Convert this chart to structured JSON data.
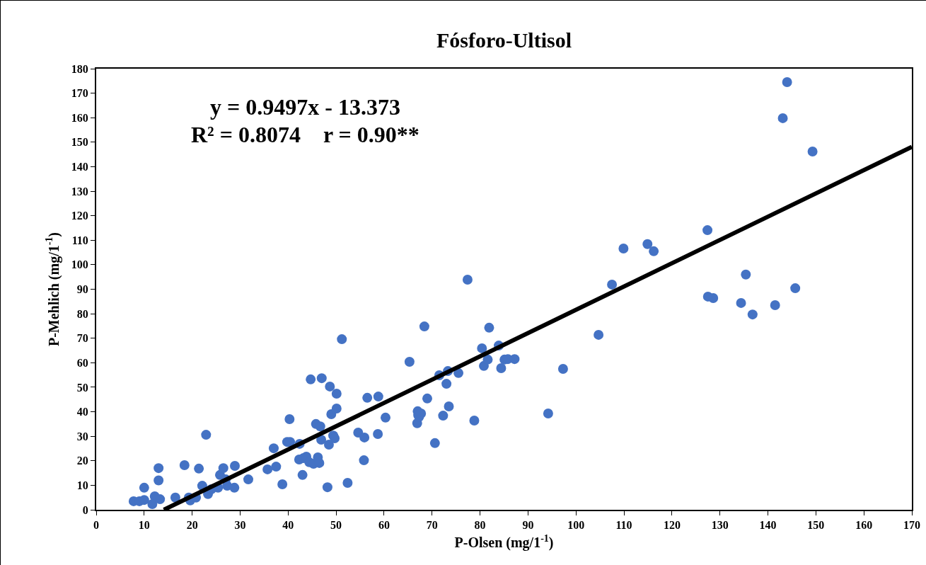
{
  "chart_data": {
    "type": "scatter",
    "title": "Fósforo-Ultisol",
    "xlabel": "P-Olsen (mg/1$^{-1}$)",
    "ylabel": "P-Mehlich (mg/1$^{-1}$)",
    "annotations": [
      "y = 0.9497x - 13.373",
      "R² = 0.8074    r = 0.90**"
    ],
    "xlim": [
      0,
      170
    ],
    "xticks": [
      0,
      10,
      20,
      30,
      40,
      50,
      60,
      70,
      80,
      90,
      100,
      110,
      120,
      130,
      140,
      150,
      160,
      170
    ],
    "ylim": [
      0,
      180
    ],
    "yticks": [
      0,
      10,
      20,
      30,
      40,
      50,
      60,
      70,
      80,
      90,
      100,
      110,
      120,
      130,
      140,
      150,
      160,
      170,
      180
    ],
    "grid": false,
    "legend": false,
    "marker": "circle",
    "series": [
      {
        "type": "scatter",
        "color": "#4472c4",
        "x": [
          7.8,
          9,
          10,
          10,
          12.2,
          11.7,
          13.3,
          13,
          13,
          16.5,
          18.4,
          19.3,
          19.6,
          20.8,
          21.4,
          22.1,
          22.9,
          23.3,
          24,
          25.4,
          25.8,
          26.5,
          27,
          27.3,
          28.8,
          28.9,
          31.7,
          35.7,
          37,
          37.5,
          38.8,
          39.8,
          40.3,
          40.4,
          42.3,
          42.4,
          43,
          43.2,
          43.8,
          44.4,
          44.7,
          45.3,
          45.8,
          46.2,
          46.5,
          46.7,
          47,
          46.9,
          48.2,
          48.5,
          48.7,
          49,
          49.4,
          49.7,
          50.1,
          50.1,
          51.2,
          52.4,
          54.6,
          55.9,
          55.8,
          56.5,
          58.7,
          58.8,
          60.3,
          65.3,
          67,
          67.1,
          66.9,
          67.3,
          67.7,
          68.4,
          69,
          70.6,
          71.5,
          72.3,
          73,
          73.3,
          73.5,
          75.5,
          77.4,
          78.8,
          80.4,
          80.8,
          81.6,
          81.9,
          83.9,
          84.4,
          85.1,
          85.8,
          87.2,
          94.2,
          97.3,
          104.7,
          107.5,
          109.9,
          114.9,
          116.2,
          127.4,
          127.5,
          128.6,
          134.4,
          135.4,
          136.8,
          141.5,
          143.1,
          144,
          145.7,
          149.3
        ],
        "values": [
          3.5,
          3.5,
          4,
          9,
          5.5,
          2.3,
          4.3,
          12,
          17,
          5,
          18.2,
          5,
          3.8,
          5,
          16.8,
          9.8,
          30.6,
          6.4,
          8.4,
          9,
          14.2,
          17,
          12.4,
          9.8,
          9,
          17.9,
          12.4,
          16.5,
          25.1,
          17.6,
          10.4,
          27.7,
          37,
          27.7,
          20.5,
          26.9,
          14.2,
          21.1,
          21.7,
          19.4,
          53.2,
          18.8,
          35,
          21.4,
          19.1,
          34,
          53.7,
          28.6,
          9.2,
          26.6,
          50.3,
          39,
          30.3,
          29.2,
          47.4,
          41.3,
          69.6,
          11,
          31.5,
          29.5,
          20.2,
          45.7,
          30.9,
          46.2,
          37.6,
          60.4,
          40.2,
          38.7,
          35.3,
          37.9,
          39.3,
          74.8,
          45.4,
          27.2,
          54.9,
          38.4,
          51.4,
          56.6,
          42.2,
          55.8,
          93.9,
          36.4,
          65.9,
          58.7,
          61.3,
          74.3,
          67,
          57.8,
          61.3,
          61.5,
          61.5,
          39.3,
          57.5,
          71.4,
          91.9,
          106.6,
          108.4,
          105.5,
          114.1,
          87,
          86.4,
          84.4,
          96,
          79.7,
          83.5,
          159.8,
          174.5,
          90.4,
          146.2
        ]
      },
      {
        "type": "line",
        "color": "#000000",
        "line_style": "solid",
        "marker": "none",
        "x": [
          14.1,
          170
        ],
        "values": [
          0,
          148.1
        ]
      }
    ]
  }
}
